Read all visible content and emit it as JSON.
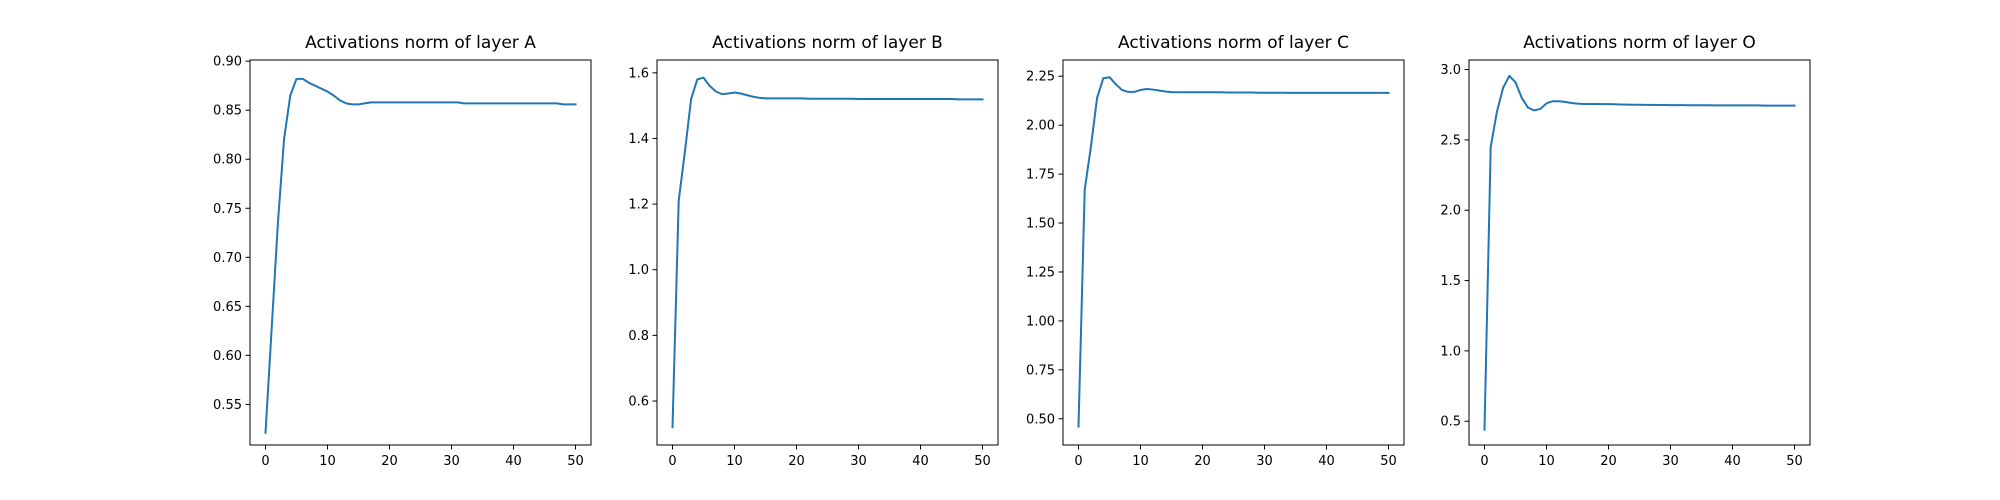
{
  "figure": {
    "background": "#ffffff",
    "line_color": "#1f77b4"
  },
  "chart_data": [
    {
      "type": "line",
      "title": "Activations norm of layer A",
      "xlabel": "",
      "ylabel": "",
      "xlim": [
        -2.5,
        52.5
      ],
      "ylim": [
        0.5086,
        0.9012
      ],
      "xticks": [
        0,
        10,
        20,
        30,
        40,
        50
      ],
      "yticks": [
        0.55,
        0.6,
        0.65,
        0.7,
        0.75,
        0.8,
        0.85,
        0.9
      ],
      "ytick_labels": [
        "0.55",
        "0.60",
        "0.65",
        "0.70",
        "0.75",
        "0.80",
        "0.85",
        "0.90"
      ],
      "grid": false,
      "series": [
        {
          "x": [
            0,
            1,
            2,
            3,
            4,
            5,
            6,
            7,
            8,
            9,
            10,
            11,
            12,
            13,
            14,
            15,
            16,
            17,
            18,
            19,
            20,
            21,
            22,
            23,
            24,
            25,
            26,
            27,
            28,
            29,
            30,
            31,
            32,
            33,
            34,
            35,
            36,
            37,
            38,
            39,
            40,
            41,
            42,
            43,
            44,
            45,
            46,
            47,
            48,
            49,
            50
          ],
          "values": [
            0.521,
            0.628,
            0.735,
            0.821,
            0.865,
            0.882,
            0.882,
            0.878,
            0.875,
            0.872,
            0.869,
            0.865,
            0.86,
            0.857,
            0.856,
            0.856,
            0.857,
            0.858,
            0.858,
            0.858,
            0.858,
            0.858,
            0.858,
            0.858,
            0.858,
            0.858,
            0.858,
            0.858,
            0.858,
            0.858,
            0.858,
            0.858,
            0.857,
            0.857,
            0.857,
            0.857,
            0.857,
            0.857,
            0.857,
            0.857,
            0.857,
            0.857,
            0.857,
            0.857,
            0.857,
            0.857,
            0.857,
            0.857,
            0.856,
            0.856,
            0.856
          ]
        }
      ]
    },
    {
      "type": "line",
      "title": "Activations norm of layer B",
      "xlabel": "",
      "ylabel": "",
      "xlim": [
        -2.5,
        52.5
      ],
      "ylim": [
        0.466,
        1.639
      ],
      "xticks": [
        0,
        10,
        20,
        30,
        40,
        50
      ],
      "yticks": [
        0.6,
        0.8,
        1.0,
        1.2,
        1.4,
        1.6
      ],
      "ytick_labels": [
        "0.6",
        "0.8",
        "1.0",
        "1.2",
        "1.4",
        "1.6"
      ],
      "grid": false,
      "series": [
        {
          "x": [
            0,
            1,
            2,
            3,
            4,
            5,
            6,
            7,
            8,
            9,
            10,
            11,
            12,
            13,
            14,
            15,
            16,
            17,
            18,
            19,
            20,
            21,
            22,
            23,
            24,
            25,
            26,
            27,
            28,
            29,
            30,
            31,
            32,
            33,
            34,
            35,
            36,
            37,
            38,
            39,
            40,
            41,
            42,
            43,
            44,
            45,
            46,
            47,
            48,
            49,
            50
          ],
          "values": [
            0.52,
            1.21,
            1.36,
            1.52,
            1.58,
            1.585,
            1.56,
            1.543,
            1.535,
            1.537,
            1.54,
            1.537,
            1.532,
            1.527,
            1.524,
            1.522,
            1.522,
            1.522,
            1.522,
            1.522,
            1.522,
            1.522,
            1.521,
            1.521,
            1.521,
            1.521,
            1.521,
            1.521,
            1.521,
            1.521,
            1.52,
            1.52,
            1.52,
            1.52,
            1.52,
            1.52,
            1.52,
            1.52,
            1.52,
            1.52,
            1.52,
            1.52,
            1.52,
            1.52,
            1.52,
            1.52,
            1.519,
            1.519,
            1.519,
            1.519,
            1.519
          ]
        }
      ]
    },
    {
      "type": "line",
      "title": "Activations norm of layer C",
      "xlabel": "",
      "ylabel": "",
      "xlim": [
        -2.5,
        52.5
      ],
      "ylim": [
        0.366,
        2.333
      ],
      "xticks": [
        0,
        10,
        20,
        30,
        40,
        50
      ],
      "yticks": [
        0.5,
        0.75,
        1.0,
        1.25,
        1.5,
        1.75,
        2.0,
        2.25
      ],
      "ytick_labels": [
        "0.50",
        "0.75",
        "1.00",
        "1.25",
        "1.50",
        "1.75",
        "2.00",
        "2.25"
      ],
      "grid": false,
      "series": [
        {
          "x": [
            0,
            1,
            2,
            3,
            4,
            5,
            6,
            7,
            8,
            9,
            10,
            11,
            12,
            13,
            14,
            15,
            16,
            17,
            18,
            19,
            20,
            21,
            22,
            23,
            24,
            25,
            26,
            27,
            28,
            29,
            30,
            31,
            32,
            33,
            34,
            35,
            36,
            37,
            38,
            39,
            40,
            41,
            42,
            43,
            44,
            45,
            46,
            47,
            48,
            49,
            50
          ],
          "values": [
            0.46,
            1.67,
            1.89,
            2.14,
            2.24,
            2.245,
            2.21,
            2.18,
            2.17,
            2.17,
            2.18,
            2.185,
            2.182,
            2.177,
            2.172,
            2.169,
            2.168,
            2.168,
            2.168,
            2.168,
            2.168,
            2.168,
            2.168,
            2.168,
            2.167,
            2.167,
            2.167,
            2.167,
            2.167,
            2.166,
            2.166,
            2.166,
            2.166,
            2.166,
            2.165,
            2.165,
            2.165,
            2.165,
            2.165,
            2.165,
            2.165,
            2.165,
            2.165,
            2.165,
            2.165,
            2.165,
            2.165,
            2.165,
            2.165,
            2.165,
            2.165
          ]
        }
      ]
    },
    {
      "type": "line",
      "title": "Activations norm of layer O",
      "xlabel": "",
      "ylabel": "",
      "xlim": [
        -2.5,
        52.5
      ],
      "ylim": [
        0.331,
        3.068
      ],
      "xticks": [
        0,
        10,
        20,
        30,
        40,
        50
      ],
      "yticks": [
        0.5,
        1.0,
        1.5,
        2.0,
        2.5,
        3.0
      ],
      "ytick_labels": [
        "0.5",
        "1.0",
        "1.5",
        "2.0",
        "2.5",
        "3.0"
      ],
      "grid": false,
      "series": [
        {
          "x": [
            0,
            1,
            2,
            3,
            4,
            5,
            6,
            7,
            8,
            9,
            10,
            11,
            12,
            13,
            14,
            15,
            16,
            17,
            18,
            19,
            20,
            21,
            22,
            23,
            24,
            25,
            26,
            27,
            28,
            29,
            30,
            31,
            32,
            33,
            34,
            35,
            36,
            37,
            38,
            39,
            40,
            41,
            42,
            43,
            44,
            45,
            46,
            47,
            48,
            49,
            50
          ],
          "values": [
            0.44,
            2.45,
            2.7,
            2.87,
            2.955,
            2.91,
            2.8,
            2.73,
            2.71,
            2.72,
            2.76,
            2.775,
            2.775,
            2.77,
            2.762,
            2.758,
            2.755,
            2.755,
            2.755,
            2.754,
            2.754,
            2.753,
            2.752,
            2.751,
            2.75,
            2.75,
            2.749,
            2.749,
            2.748,
            2.748,
            2.747,
            2.747,
            2.747,
            2.746,
            2.746,
            2.746,
            2.746,
            2.745,
            2.745,
            2.745,
            2.745,
            2.745,
            2.745,
            2.745,
            2.745,
            2.744,
            2.744,
            2.744,
            2.744,
            2.744,
            2.744
          ]
        }
      ]
    }
  ]
}
